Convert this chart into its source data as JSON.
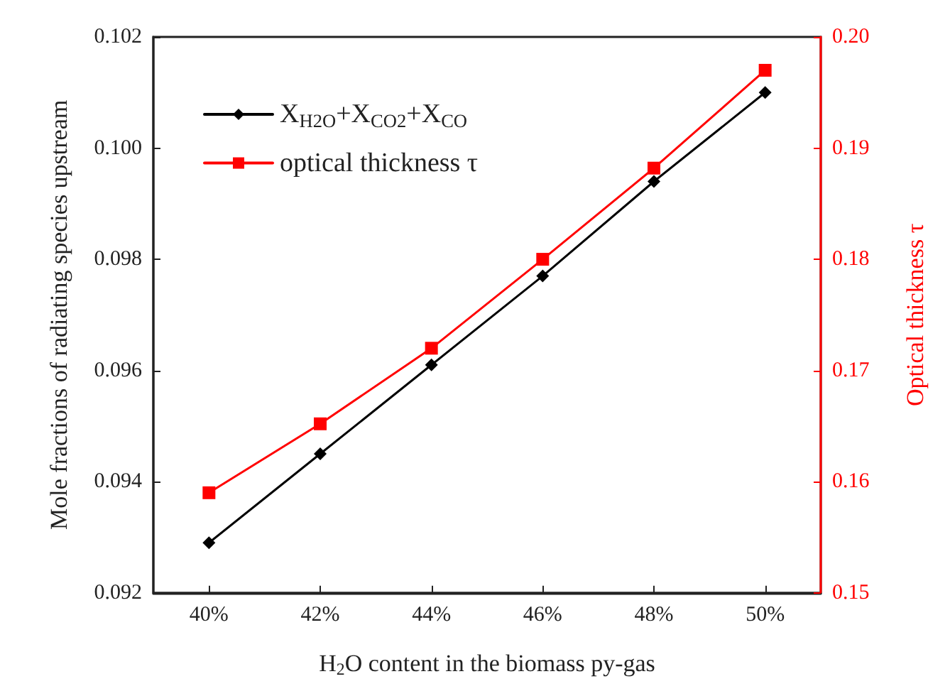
{
  "chart_data": {
    "type": "line",
    "xlabel": "H$_{2}$O content in the biomass py-gas",
    "ylabel": "Mole fractions of radiating species upstream",
    "y2label": "Optical thickness τ",
    "categories": [
      "40%",
      "42%",
      "44%",
      "46%",
      "48%",
      "50%"
    ],
    "series": [
      {
        "name": "X$_{H2O}$+X$_{CO2}$+X$_{CO}$",
        "color": "#000000",
        "marker": "diamond",
        "values": [
          0.0929,
          0.0945,
          0.0961,
          0.0977,
          0.0994,
          0.101
        ]
      },
      {
        "name": "optical thickness τ",
        "color": "#ff0000",
        "marker": "square",
        "axis": "y2",
        "values": [
          0.159,
          0.1652,
          0.172,
          0.18,
          0.1882,
          0.197
        ]
      }
    ],
    "ylim": [
      0.092,
      0.102
    ],
    "yticks": [
      0.092,
      0.094,
      0.096,
      0.098,
      {
        "value": 0.1,
        "label": "0.100"
      },
      0.102
    ],
    "y2lim": [
      0.15,
      0.2
    ],
    "y2ticks": [
      0.15,
      0.16,
      0.17,
      0.18,
      0.19,
      {
        "value": 0.2,
        "label": "0.20"
      }
    ],
    "grid": false,
    "legend": "top left",
    "line_style": "solid"
  }
}
